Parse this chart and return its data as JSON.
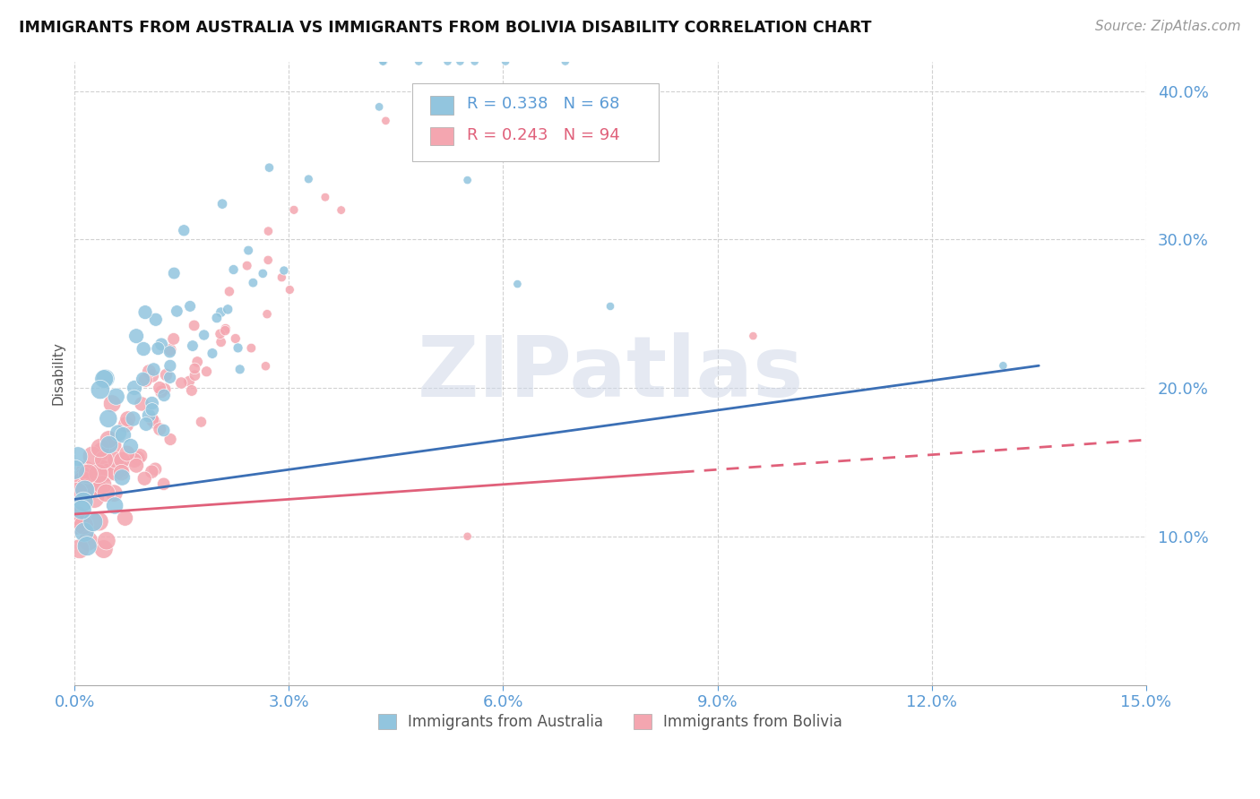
{
  "title": "IMMIGRANTS FROM AUSTRALIA VS IMMIGRANTS FROM BOLIVIA DISABILITY CORRELATION CHART",
  "source": "Source: ZipAtlas.com",
  "ylabel": "Disability",
  "x_min": 0.0,
  "x_max": 0.15,
  "y_min": 0.0,
  "y_max": 0.42,
  "y_ticks": [
    0.1,
    0.2,
    0.3,
    0.4
  ],
  "x_ticks": [
    0.0,
    0.03,
    0.06,
    0.09,
    0.12,
    0.15
  ],
  "legend_r1": "R = 0.338",
  "legend_n1": "N = 68",
  "legend_r2": "R = 0.243",
  "legend_n2": "N = 94",
  "legend_label1": "Immigrants from Australia",
  "legend_label2": "Immigrants from Bolivia",
  "color_australia": "#92C5DE",
  "color_bolivia": "#F4A6B0",
  "color_line_aus": "#3B6FB5",
  "color_line_bol": "#E0607A",
  "color_tick": "#5B9BD5",
  "background_color": "#ffffff",
  "aus_line_start": 0.0,
  "aus_line_end": 0.135,
  "bol_line_solid_end": 0.085,
  "bol_line_dashed_end": 0.15,
  "aus_line_y0": 0.125,
  "aus_line_y1": 0.215,
  "bol_line_y0": 0.115,
  "bol_line_y1": 0.165,
  "watermark": "ZIPatlas"
}
